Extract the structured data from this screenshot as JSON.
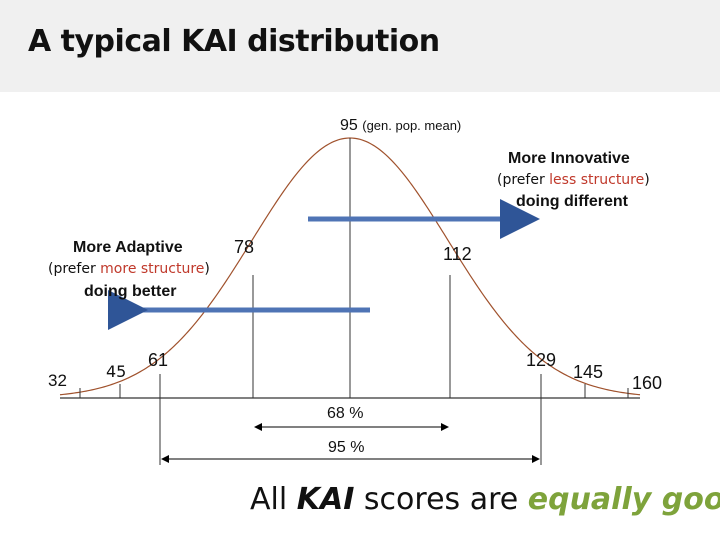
{
  "title": "A typical KAI distribution",
  "mean_label": {
    "value": "95",
    "note": "(gen. pop. mean)"
  },
  "innovative": {
    "heading": "More Innovative",
    "prefer_open": "(prefer ",
    "prefer_highlight": "less structure",
    "prefer_close": ")",
    "motto": "doing different"
  },
  "adaptive": {
    "heading": "More Adaptive",
    "prefer_open": "(prefer ",
    "prefer_highlight": "more structure",
    "prefer_close": ")",
    "motto": "doing better"
  },
  "scores": {
    "s32": "32",
    "s45": "45",
    "s61": "61",
    "s78": "78",
    "s112": "112",
    "s129": "129",
    "s145": "145",
    "s160": "160"
  },
  "bands": {
    "one_sd": "68 %",
    "two_sd": "95 %"
  },
  "footer": {
    "pre": "All ",
    "kai": "KAI",
    "mid": " scores are ",
    "good": "equally good",
    "end": "."
  },
  "colors": {
    "curve": "#a0522d",
    "arrow": "#4f74b5",
    "highlight_red": "#c0392b",
    "highlight_green": "#7ea33b",
    "title_band": "#f0f0f0"
  }
}
